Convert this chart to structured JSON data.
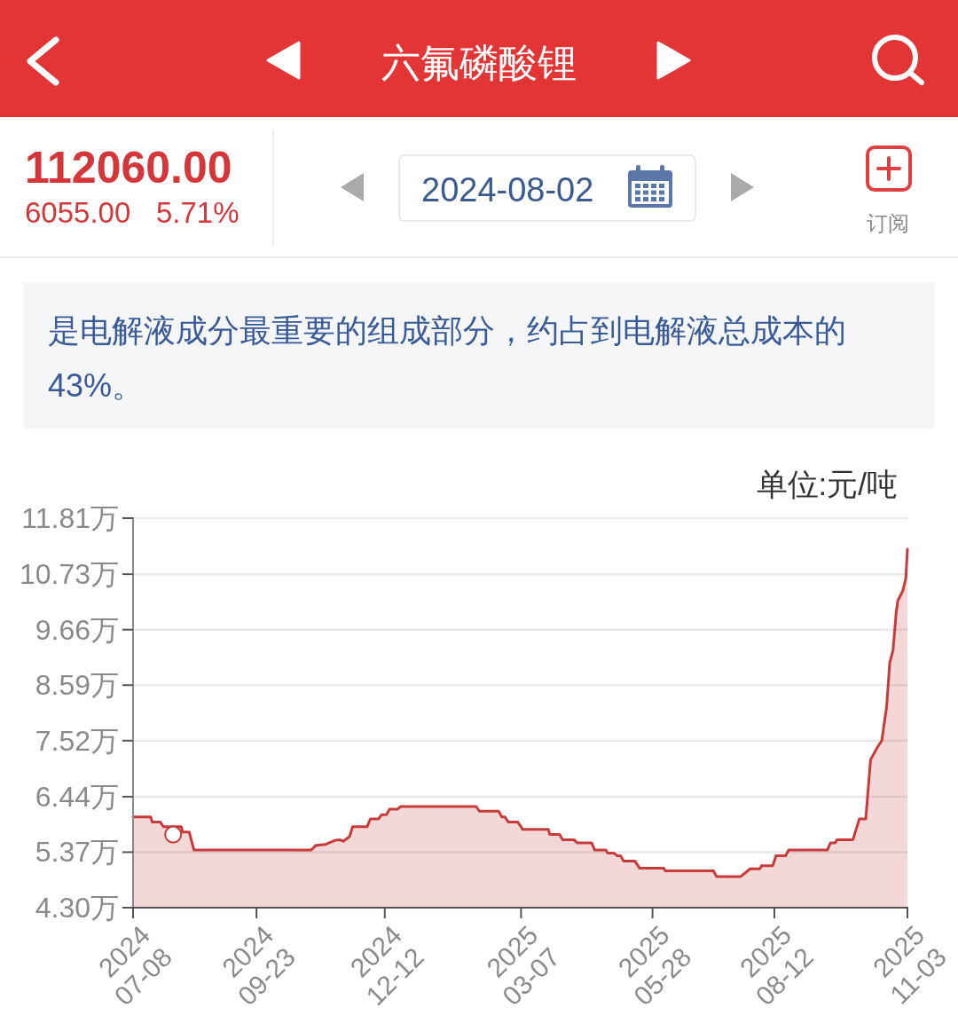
{
  "chart_data": {
    "type": "area",
    "title": "六氟磷酸锂",
    "subtitle": "是电解液成分最重要的组成部分，约占到电解液总成本的43%。",
    "ylabel": "单位:元/吨",
    "annotations": [
      "112060.00",
      "6055.00",
      "5.71%",
      "2024-08-02",
      "订阅"
    ],
    "xlim": [
      "2024-07-08",
      "2025-11-03"
    ],
    "xticks": [
      {
        "value": "2024-07-08",
        "label": "2024\n07-08"
      },
      {
        "value": "2024-09-23",
        "label": "2024\n09-23"
      },
      {
        "value": "2024-12-12",
        "label": "2024\n12-12"
      },
      {
        "value": "2025-03-07",
        "label": "2025\n03-07"
      },
      {
        "value": "2025-05-28",
        "label": "2025\n05-28"
      },
      {
        "value": "2025-08-12",
        "label": "2025\n08-12"
      },
      {
        "value": "2025-11-03",
        "label": "2025\n11-03"
      }
    ],
    "ylim": [
      4.3,
      11.81
    ],
    "yticks": [
      {
        "value": 4.3,
        "label": "4.30万"
      },
      {
        "value": 5.37,
        "label": "5.37万"
      },
      {
        "value": 6.44,
        "label": "6.44万"
      },
      {
        "value": 7.52,
        "label": "7.52万"
      },
      {
        "value": 8.59,
        "label": "8.59万"
      },
      {
        "value": 9.66,
        "label": "9.66万"
      },
      {
        "value": 10.73,
        "label": "10.73万"
      },
      {
        "value": 11.81,
        "label": "11.81万"
      }
    ],
    "grid": "y",
    "series": [
      {
        "color": "#c73b3b",
        "x": [
          "2024-07-08",
          "2024-07-19",
          "2024-07-20",
          "2024-07-25",
          "2024-07-27",
          "2024-08-07",
          "2024-08-08",
          "2024-08-12",
          "2024-08-15",
          "2024-10-27",
          "2024-10-30",
          "2024-11-05",
          "2024-11-11",
          "2024-11-14",
          "2024-11-16",
          "2024-11-20",
          "2024-11-22",
          "2024-12-01",
          "2024-12-03",
          "2024-12-08",
          "2024-12-10",
          "2024-12-13",
          "2024-12-15",
          "2024-12-20",
          "2024-12-22",
          "2025-02-07",
          "2025-02-09",
          "2025-02-21",
          "2025-02-23",
          "2025-02-25",
          "2025-02-27",
          "2025-03-05",
          "2025-03-07",
          "2025-03-08",
          "2025-03-24",
          "2025-03-25",
          "2025-03-31",
          "2025-04-02",
          "2025-04-09",
          "2025-04-11",
          "2025-04-20",
          "2025-04-22",
          "2025-04-29",
          "2025-04-30",
          "2025-05-04",
          "2025-05-06",
          "2025-05-08",
          "2025-05-10",
          "2025-05-17",
          "2025-05-20",
          "2025-06-04",
          "2025-06-05",
          "2025-07-05",
          "2025-07-07",
          "2025-07-22",
          "2025-07-24",
          "2025-07-28",
          "2025-08-03",
          "2025-08-04",
          "2025-08-11",
          "2025-08-13",
          "2025-08-19",
          "2025-08-21",
          "2025-09-14",
          "2025-09-16",
          "2025-09-19",
          "2025-09-20",
          "2025-09-30",
          "2025-10-04",
          "2025-10-08",
          "2025-10-11",
          "2025-10-12",
          "2025-10-15",
          "2025-10-18",
          "2025-10-21",
          "2025-10-23",
          "2025-10-25",
          "2025-10-27",
          "2025-10-28",
          "2025-10-31",
          "2025-11-02",
          "2025-11-03"
        ],
        "values": [
          6.05,
          6.05,
          5.95,
          5.95,
          5.86,
          5.86,
          5.76,
          5.76,
          5.41,
          5.41,
          5.5,
          5.52,
          5.6,
          5.61,
          5.58,
          5.67,
          5.86,
          5.86,
          6.01,
          6.01,
          6.09,
          6.09,
          6.2,
          6.2,
          6.25,
          6.25,
          6.16,
          6.16,
          6.05,
          6.05,
          5.95,
          5.95,
          5.86,
          5.81,
          5.81,
          5.71,
          5.71,
          5.61,
          5.61,
          5.55,
          5.55,
          5.41,
          5.41,
          5.35,
          5.35,
          5.3,
          5.3,
          5.2,
          5.2,
          5.06,
          5.06,
          5.01,
          5.01,
          4.9,
          4.9,
          4.95,
          5.05,
          5.05,
          5.11,
          5.11,
          5.3,
          5.3,
          5.41,
          5.41,
          5.55,
          5.55,
          5.61,
          5.61,
          6.01,
          6.01,
          7.15,
          7.21,
          7.38,
          7.52,
          8.17,
          9.03,
          9.26,
          10.0,
          10.22,
          10.4,
          10.65,
          11.21
        ]
      },
      {
        "type": "scatter",
        "color": "#c73b3b",
        "x": [
          "2024-08-02"
        ],
        "values": [
          5.71
        ]
      }
    ]
  }
}
